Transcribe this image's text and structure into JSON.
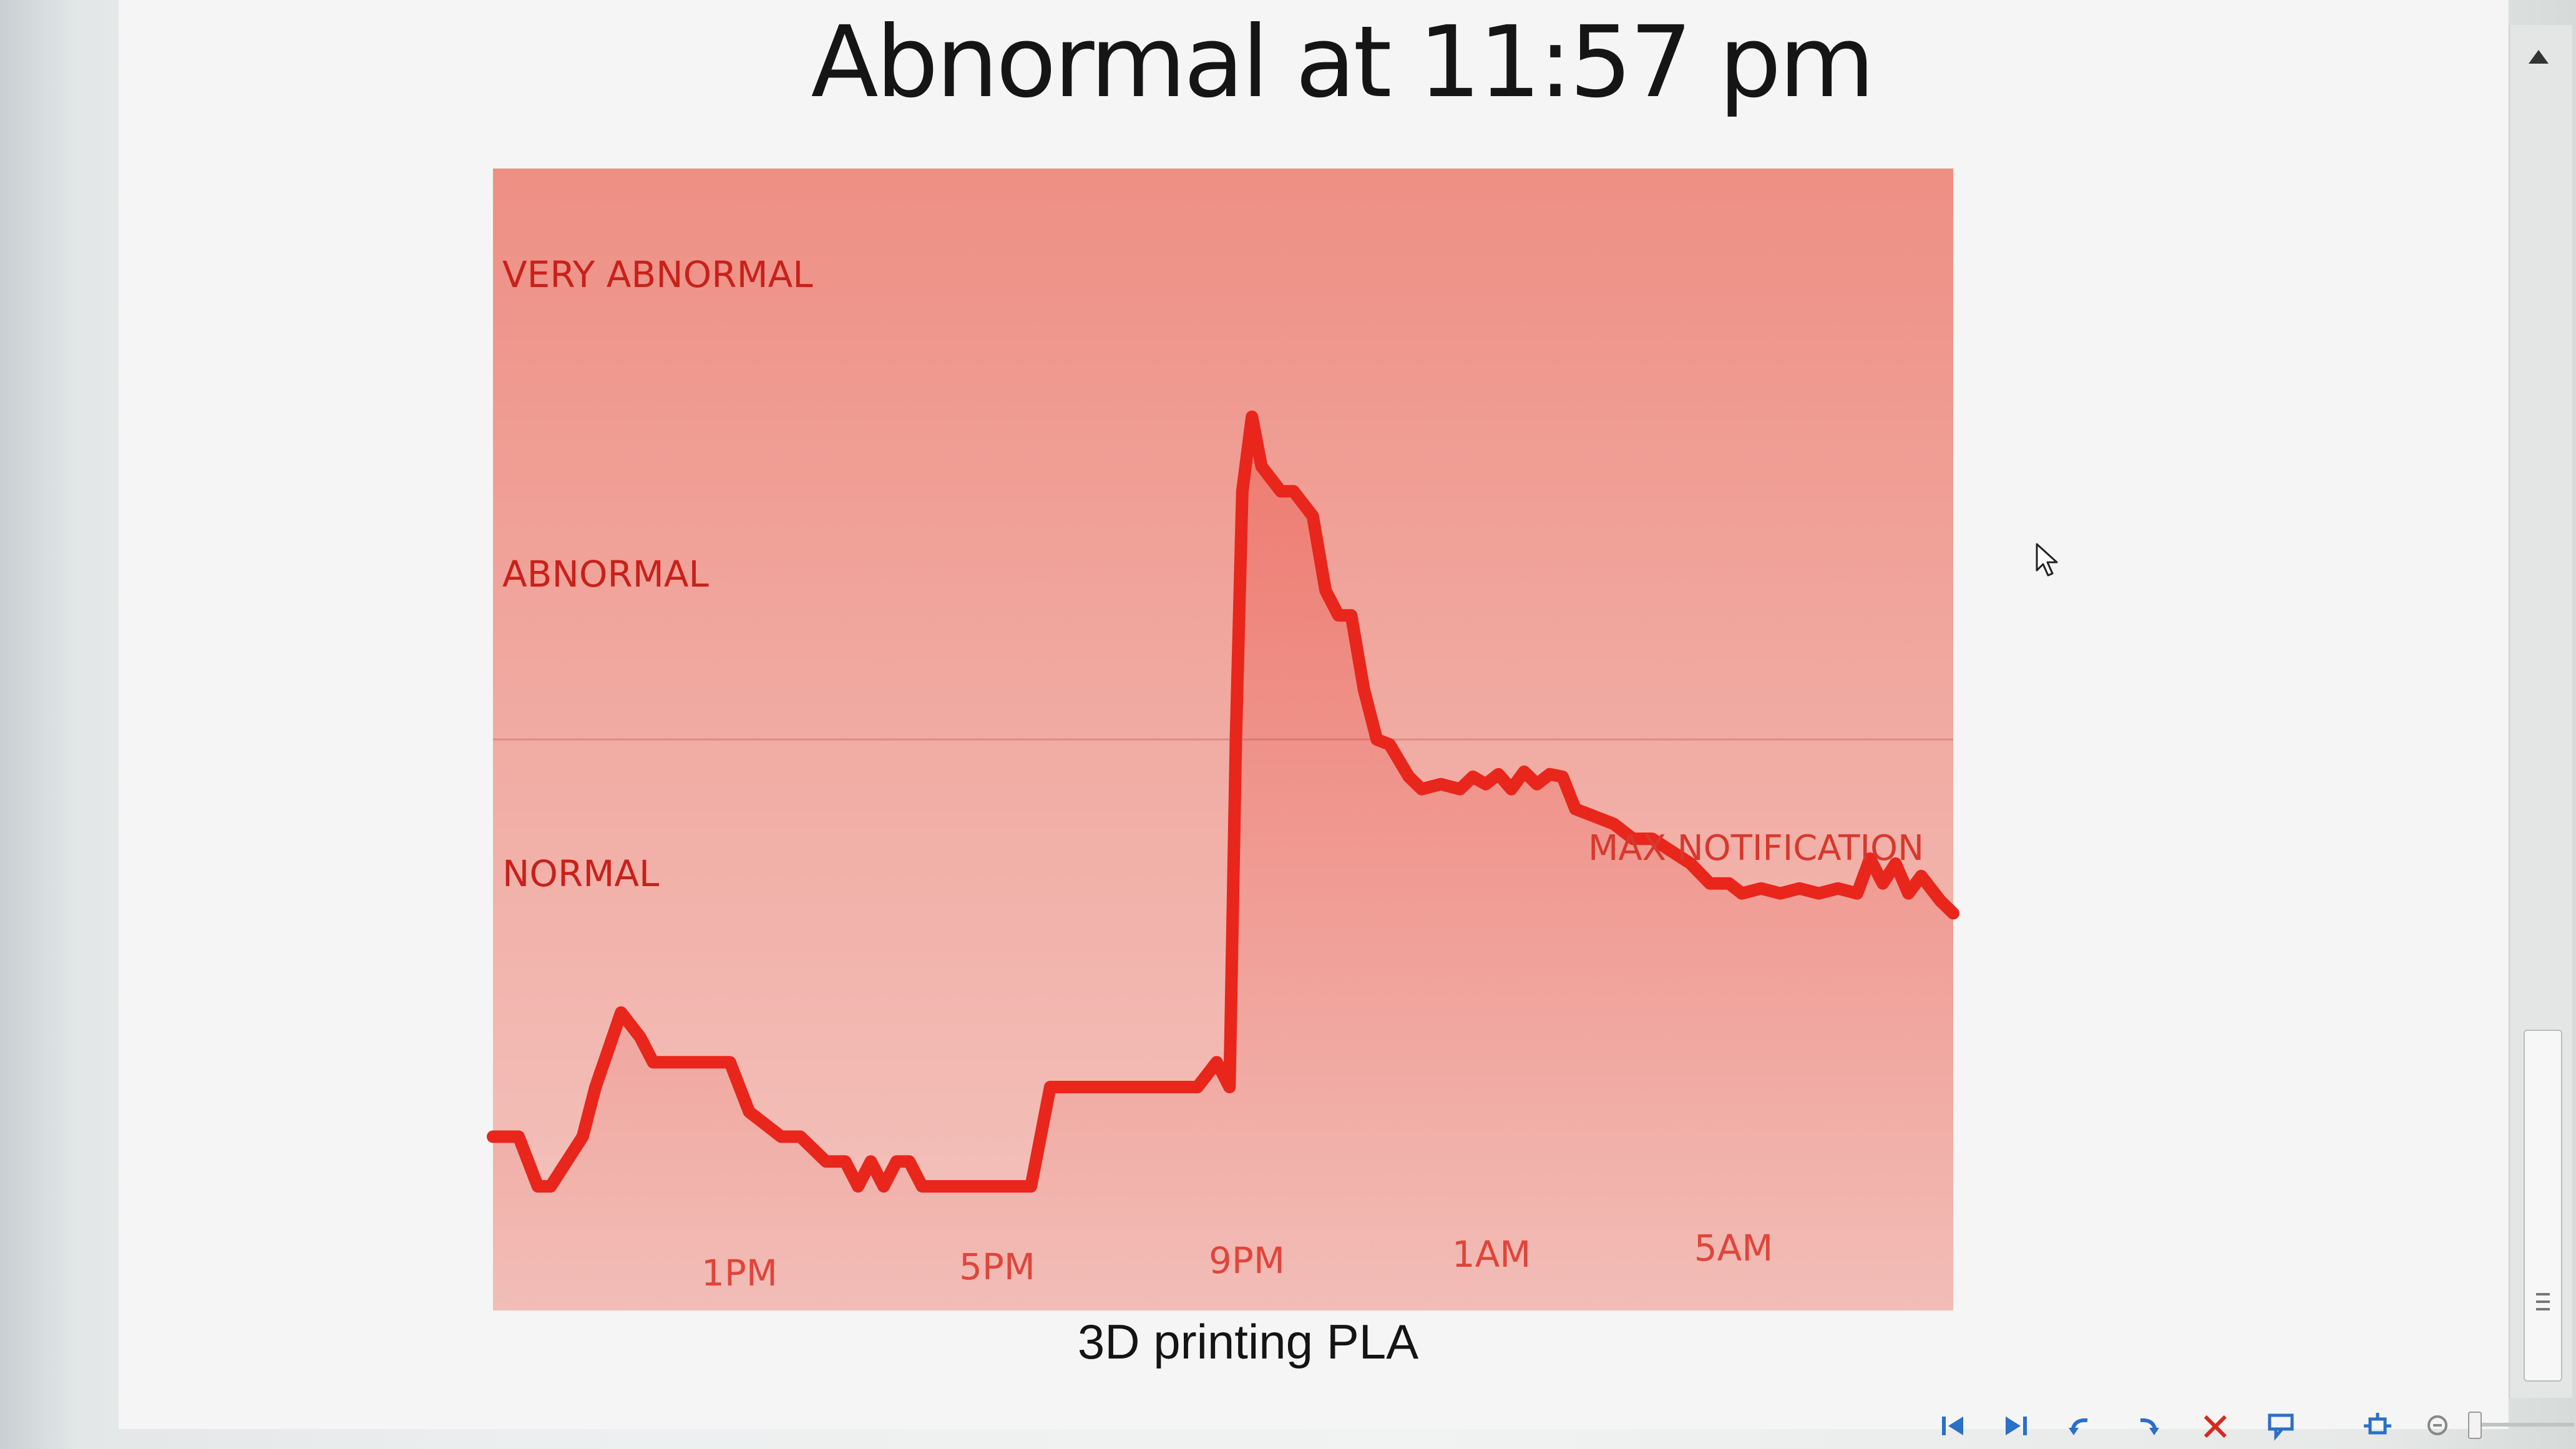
{
  "title": "Abnormal at 11:57 pm",
  "caption": "3D printing PLA",
  "colors": {
    "line": "#e8261b",
    "band_top": "#ee8f84",
    "band_bottom": "#f2c2bd",
    "label": "#c8211a"
  },
  "chart_data": {
    "type": "area",
    "title": "Abnormal at 11:57 pm",
    "subtitle": "3D printing PLA",
    "y_levels": [
      {
        "label": "VERY ABNORMAL",
        "value": 3
      },
      {
        "label": "ABNORMAL",
        "value": 2
      },
      {
        "label": "NORMAL",
        "value": 1
      }
    ],
    "threshold": {
      "label": "MAX NOTIFICATION",
      "value": 1
    },
    "x_ticks": [
      {
        "label": "1PM",
        "hour": 13
      },
      {
        "label": "5PM",
        "hour": 17
      },
      {
        "label": "9PM",
        "hour": 21
      },
      {
        "label": "1AM",
        "hour": 25
      },
      {
        "label": "5AM",
        "hour": 29
      }
    ],
    "x_range": [
      9.5,
      32.3
    ],
    "y_range": [
      -1.3,
      3.3
    ],
    "grid": false,
    "series": [
      {
        "x": [
          9.5,
          9.9,
          10.2,
          10.4,
          10.9,
          11.1,
          11.5,
          11.8,
          12.0,
          12.4,
          12.8,
          13.2,
          13.5,
          14.0,
          14.3,
          14.7,
          15.0,
          15.2,
          15.4,
          15.6,
          15.8,
          16.0,
          16.2,
          16.5,
          17.0,
          17.5,
          17.9,
          18.2,
          18.5,
          18.9,
          19.5,
          20.0,
          20.5,
          20.8,
          21.0,
          21.1,
          21.2,
          21.35,
          21.5,
          21.8,
          22.0,
          22.3,
          22.5,
          22.7,
          22.9,
          23.1,
          23.3,
          23.5,
          23.8,
          24.0,
          24.3,
          24.6,
          24.8,
          25.0,
          25.2,
          25.4,
          25.6,
          25.8,
          26.0,
          26.2,
          26.4,
          26.6,
          26.8,
          27.0,
          27.3,
          27.6,
          27.9,
          28.2,
          28.5,
          28.8,
          29.0,
          29.3,
          29.6,
          29.9,
          30.2,
          30.5,
          30.8,
          31.0,
          31.2,
          31.4,
          31.6,
          31.8,
          32.1,
          32.3
        ],
        "y": [
          -0.6,
          -0.6,
          -0.8,
          -0.8,
          -0.6,
          -0.4,
          -0.1,
          -0.2,
          -0.3,
          -0.3,
          -0.3,
          -0.3,
          -0.5,
          -0.6,
          -0.6,
          -0.7,
          -0.7,
          -0.8,
          -0.7,
          -0.8,
          -0.7,
          -0.7,
          -0.8,
          -0.8,
          -0.8,
          -0.8,
          -0.8,
          -0.4,
          -0.4,
          -0.4,
          -0.4,
          -0.4,
          -0.4,
          -0.3,
          -0.4,
          1.0,
          2.0,
          2.3,
          2.1,
          2.0,
          2.0,
          1.9,
          1.6,
          1.5,
          1.5,
          1.2,
          1.0,
          0.98,
          0.85,
          0.8,
          0.82,
          0.8,
          0.85,
          0.82,
          0.86,
          0.8,
          0.87,
          0.82,
          0.86,
          0.85,
          0.72,
          0.7,
          0.68,
          0.66,
          0.6,
          0.6,
          0.55,
          0.5,
          0.42,
          0.42,
          0.38,
          0.4,
          0.38,
          0.4,
          0.38,
          0.4,
          0.38,
          0.52,
          0.42,
          0.5,
          0.38,
          0.45,
          0.35,
          0.3
        ]
      }
    ]
  },
  "chart_labels": {
    "very_abnormal": "VERY ABNORMAL",
    "abnormal": "ABNORMAL",
    "normal": "NORMAL",
    "max_notification": "MAX NOTIFICATION",
    "tick_1": "1PM",
    "tick_2": "5PM",
    "tick_3": "9PM",
    "tick_4": "1AM",
    "tick_5": "5AM"
  },
  "toolbar": {
    "icons": [
      "skip-start-icon",
      "skip-end-icon",
      "undo-icon",
      "redo-icon",
      "delete-icon",
      "comment-icon",
      "fit-icon",
      "zoom-out-icon"
    ]
  }
}
